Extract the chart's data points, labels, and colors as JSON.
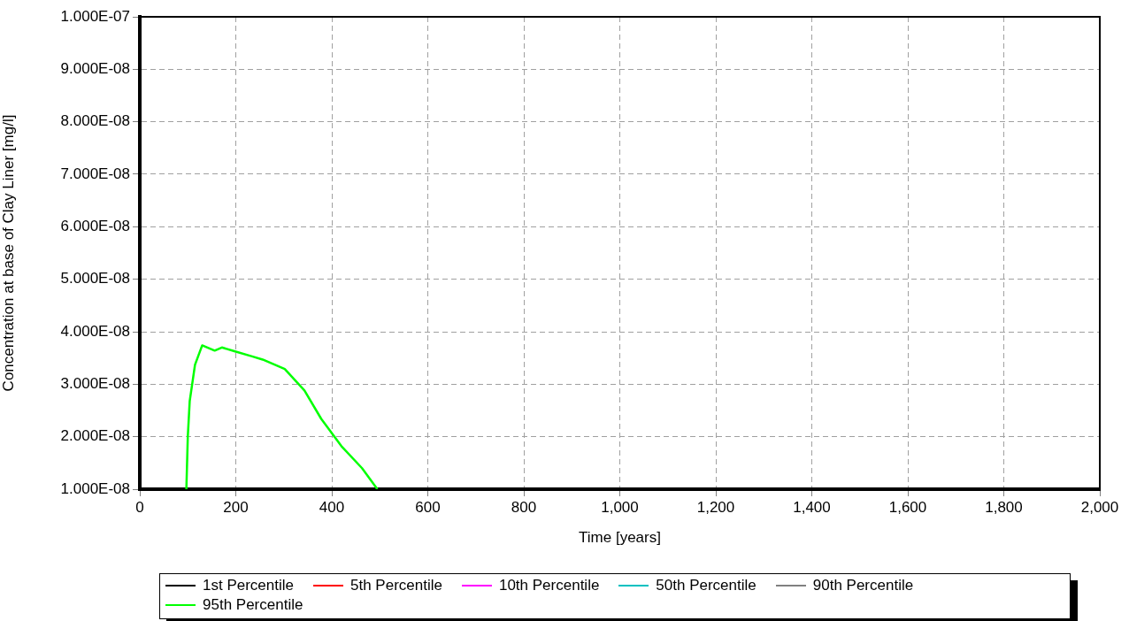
{
  "chart_data": {
    "type": "line",
    "xlabel": "Time [years]",
    "ylabel": "Concentration at base of Clay Liner [mg/l]",
    "xlim": [
      0,
      2000
    ],
    "xticks": [
      0,
      200,
      400,
      600,
      800,
      {
        "value": 1000,
        "label": "1,000"
      },
      {
        "value": 1200,
        "label": "1,200"
      },
      {
        "value": 1400,
        "label": "1,400"
      },
      {
        "value": 1600,
        "label": "1,600"
      },
      {
        "value": 1800,
        "label": "1,800"
      },
      {
        "value": 2000,
        "label": "2,000"
      }
    ],
    "ylim": [
      1e-08,
      1e-07
    ],
    "yticks": [
      {
        "value": 1e-08,
        "label": "1.000E-08"
      },
      {
        "value": 2e-08,
        "label": "2.000E-08"
      },
      {
        "value": 3e-08,
        "label": "3.000E-08"
      },
      {
        "value": 4e-08,
        "label": "4.000E-08"
      },
      {
        "value": 5e-08,
        "label": "5.000E-08"
      },
      {
        "value": 6e-08,
        "label": "6.000E-08"
      },
      {
        "value": 7e-08,
        "label": "7.000E-08"
      },
      {
        "value": 8e-08,
        "label": "8.000E-08"
      },
      {
        "value": 9e-08,
        "label": "9.000E-08"
      },
      {
        "value": 1e-07,
        "label": "1.000E-07"
      }
    ],
    "grid": true,
    "legend": "bottom",
    "line_style": "solid",
    "marker": "none",
    "series": [
      {
        "name": "1st Percentile",
        "color": "#000000"
      },
      {
        "name": "5th Percentile",
        "color": "#ff0000"
      },
      {
        "name": "10th Percentile",
        "color": "#ff00ff"
      },
      {
        "name": "50th Percentile",
        "color": "#00c0c0"
      },
      {
        "name": "90th Percentile",
        "color": "#808080"
      },
      {
        "name": "95th Percentile",
        "color": "#00ff00",
        "x": [
          97,
          100,
          104,
          115,
          130,
          156,
          171,
          197,
          234,
          256,
          302,
          343,
          378,
          420,
          463,
          495
        ],
        "values": [
          1e-08,
          2e-08,
          2.68e-08,
          3.37e-08,
          3.74e-08,
          3.64e-08,
          3.7e-08,
          3.63e-08,
          3.53e-08,
          3.47e-08,
          3.29e-08,
          2.88e-08,
          2.34e-08,
          1.82e-08,
          1.4e-08,
          1e-08
        ]
      }
    ]
  }
}
